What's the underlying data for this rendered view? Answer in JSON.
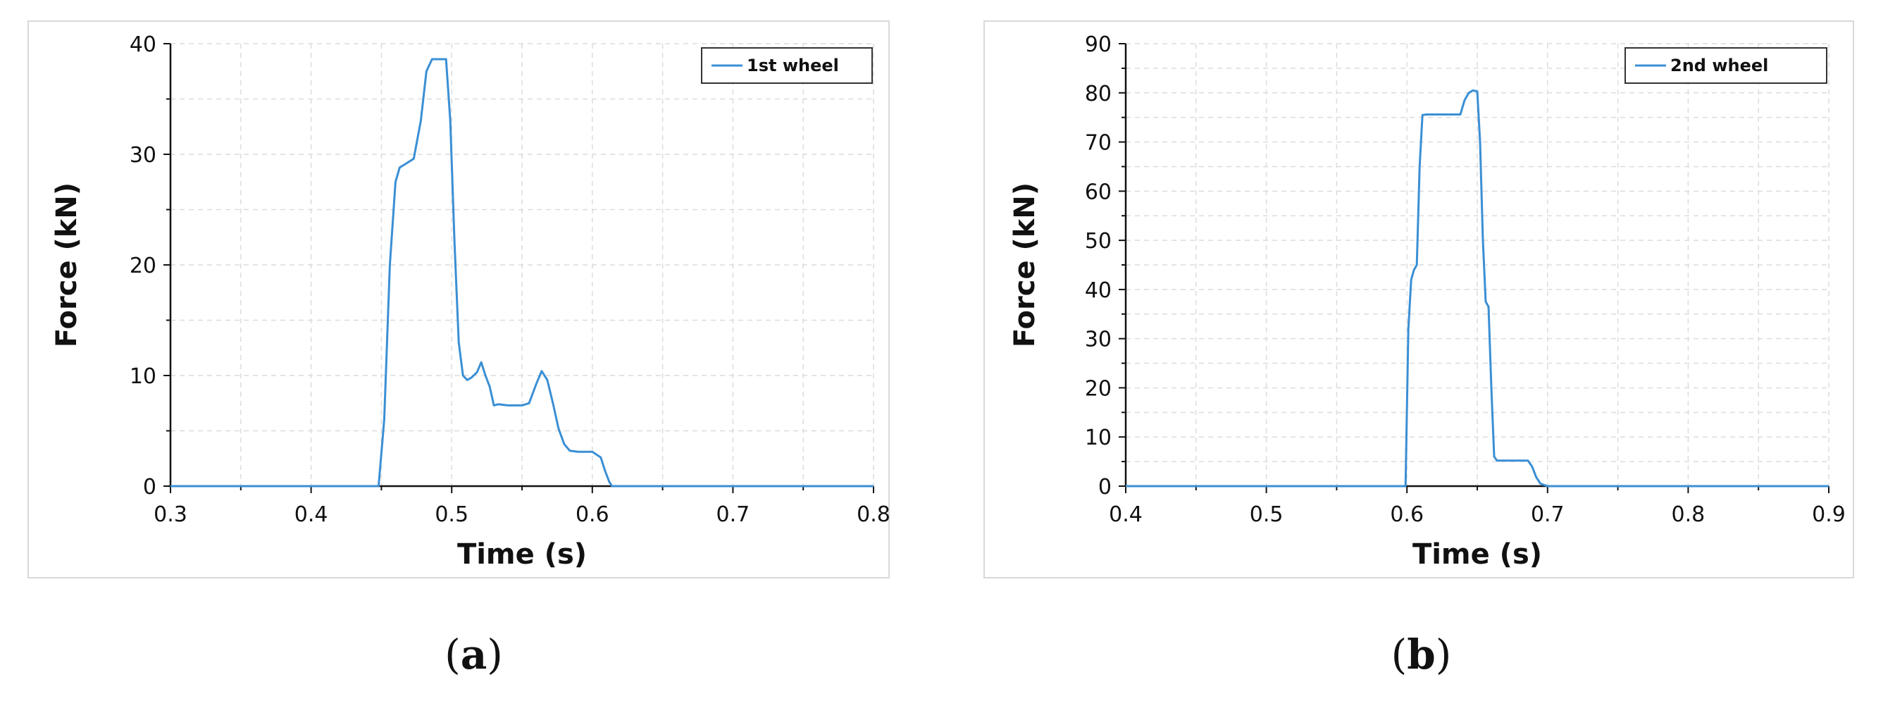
{
  "chart_data": [
    {
      "type": "line",
      "panel_label": "a",
      "xlabel": "Time (s)",
      "ylabel": "Force (kN)",
      "xlim": [
        0.3,
        0.8
      ],
      "ylim": [
        0,
        40
      ],
      "xticks": [
        0.3,
        0.4,
        0.5,
        0.6,
        0.7,
        0.8
      ],
      "xtick_labels": [
        "0.3",
        "0.4",
        "0.5",
        "0.6",
        "0.7",
        "0.8"
      ],
      "yticks": [
        0,
        10,
        20,
        30,
        40
      ],
      "ytick_labels": [
        "0",
        "10",
        "20",
        "30",
        "40"
      ],
      "grid": true,
      "legend_position": "top-right",
      "line_color": "#3a8fd4",
      "series": [
        {
          "name": "1st wheel",
          "x": [
            0.3,
            0.448,
            0.452,
            0.456,
            0.46,
            0.463,
            0.468,
            0.473,
            0.478,
            0.482,
            0.486,
            0.49,
            0.493,
            0.496,
            0.499,
            0.502,
            0.505,
            0.508,
            0.511,
            0.514,
            0.518,
            0.521,
            0.524,
            0.527,
            0.53,
            0.533,
            0.54,
            0.55,
            0.555,
            0.56,
            0.564,
            0.568,
            0.572,
            0.576,
            0.58,
            0.584,
            0.59,
            0.6,
            0.606,
            0.609,
            0.612,
            0.614,
            0.65,
            0.8
          ],
          "y": [
            0,
            0,
            6,
            20,
            27.5,
            28.8,
            29.2,
            29.6,
            33,
            37.5,
            38.6,
            38.6,
            38.6,
            38.6,
            33,
            22,
            13,
            10,
            9.6,
            9.8,
            10.3,
            11.2,
            10,
            9,
            7.3,
            7.4,
            7.3,
            7.3,
            7.5,
            9.2,
            10.4,
            9.6,
            7.5,
            5.2,
            3.8,
            3.2,
            3.1,
            3.1,
            2.6,
            1.4,
            0.4,
            0,
            0,
            0
          ]
        }
      ]
    },
    {
      "type": "line",
      "panel_label": "b",
      "xlabel": "Time (s)",
      "ylabel": "Force (kN)",
      "xlim": [
        0.4,
        0.9
      ],
      "ylim": [
        0,
        90
      ],
      "xticks": [
        0.4,
        0.5,
        0.6,
        0.7,
        0.8,
        0.9
      ],
      "xtick_labels": [
        "0.4",
        "0.5",
        "0.6",
        "0.7",
        "0.8",
        "0.9"
      ],
      "yticks": [
        0,
        10,
        20,
        30,
        40,
        50,
        60,
        70,
        80,
        90
      ],
      "ytick_labels": [
        "0",
        "10",
        "20",
        "30",
        "40",
        "50",
        "60",
        "70",
        "80",
        "90"
      ],
      "grid": true,
      "legend_position": "top-right",
      "line_color": "#3a8fd4",
      "series": [
        {
          "name": "2nd wheel",
          "x": [
            0.4,
            0.599,
            0.601,
            0.603,
            0.605,
            0.607,
            0.609,
            0.611,
            0.614,
            0.62,
            0.63,
            0.638,
            0.641,
            0.644,
            0.647,
            0.65,
            0.652,
            0.654,
            0.656,
            0.658,
            0.66,
            0.662,
            0.664,
            0.67,
            0.68,
            0.686,
            0.689,
            0.692,
            0.695,
            0.7,
            0.9
          ],
          "y": [
            0,
            0,
            32,
            42,
            44,
            45,
            65,
            75.5,
            75.6,
            75.6,
            75.6,
            75.6,
            78.5,
            80,
            80.5,
            80.3,
            70,
            50,
            37.5,
            36.5,
            20,
            6,
            5.2,
            5.2,
            5.2,
            5.2,
            4,
            1.8,
            0.5,
            0,
            0
          ]
        }
      ]
    }
  ]
}
